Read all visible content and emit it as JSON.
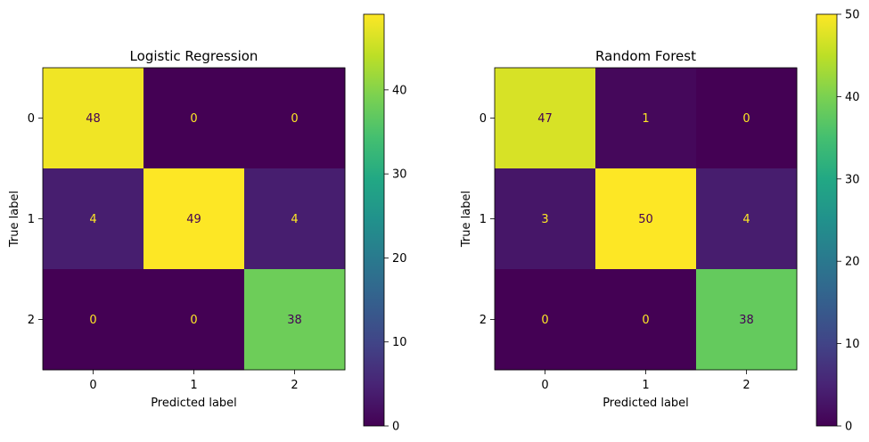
{
  "chart_data": [
    {
      "type": "heatmap",
      "title": "Logistic Regression",
      "xlabel": "Predicted label",
      "ylabel": "True label",
      "x_categories": [
        "0",
        "1",
        "2"
      ],
      "y_categories": [
        "0",
        "1",
        "2"
      ],
      "values": [
        [
          48,
          0,
          0
        ],
        [
          4,
          49,
          4
        ],
        [
          0,
          0,
          38
        ]
      ],
      "colorbar": {
        "vmin": 0,
        "vmax": 49,
        "ticks": [
          0,
          10,
          20,
          30,
          40
        ]
      },
      "colormap": "viridis",
      "grid": false
    },
    {
      "type": "heatmap",
      "title": "Random Forest",
      "xlabel": "Predicted label",
      "ylabel": "True label",
      "x_categories": [
        "0",
        "1",
        "2"
      ],
      "y_categories": [
        "0",
        "1",
        "2"
      ],
      "values": [
        [
          47,
          1,
          0
        ],
        [
          3,
          50,
          4
        ],
        [
          0,
          0,
          38
        ]
      ],
      "colorbar": {
        "vmin": 0,
        "vmax": 50,
        "ticks": [
          0,
          10,
          20,
          30,
          40,
          50
        ]
      },
      "colormap": "viridis",
      "grid": false
    }
  ],
  "colors": {
    "text_on_dark": "#fde725",
    "text_on_light": "#440154"
  }
}
